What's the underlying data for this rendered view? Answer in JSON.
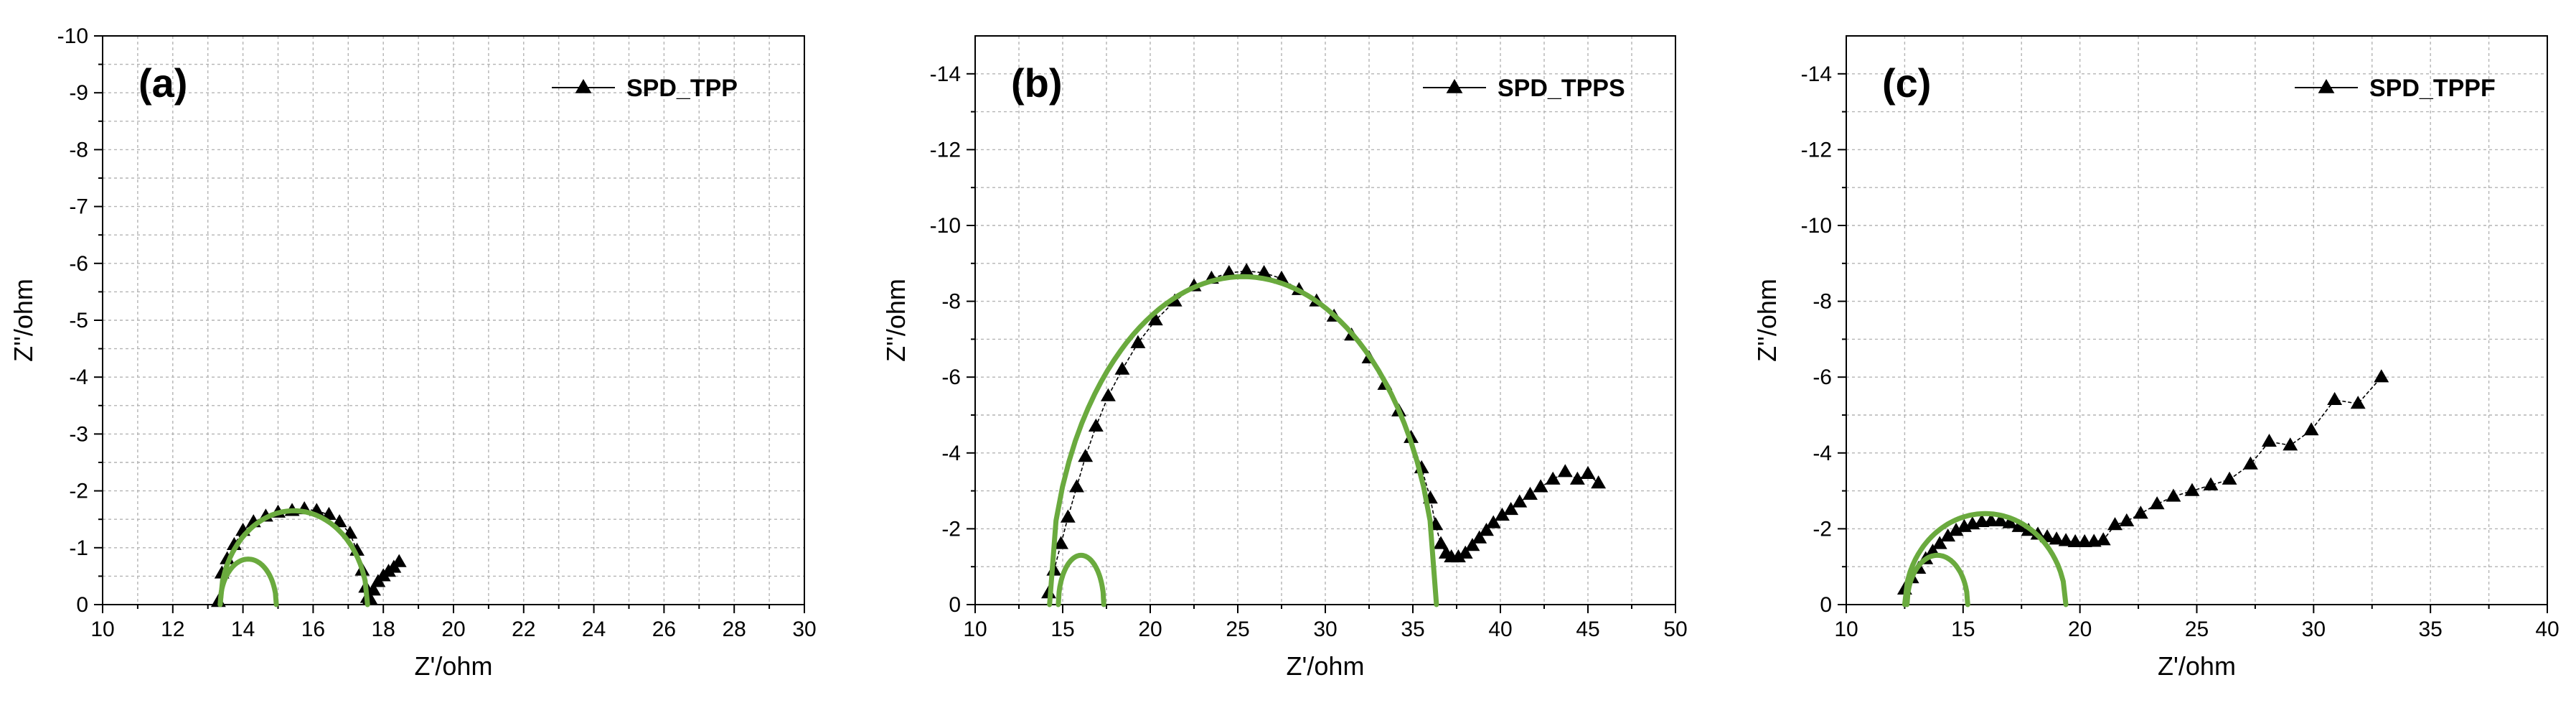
{
  "colors": {
    "data": "#000000",
    "fit": "#6aaa3e",
    "grid": "#b4b4b4",
    "axis": "#000000"
  },
  "chart_data": [
    {
      "type": "scatter",
      "panel_label": "(a)",
      "xlabel": "Z'/ohm",
      "ylabel": "Z''/ohm",
      "xlim": [
        10,
        30
      ],
      "ylim": [
        0,
        -10
      ],
      "xticks": [
        10,
        12,
        14,
        16,
        18,
        20,
        22,
        24,
        26,
        28,
        30
      ],
      "yticks": [
        0,
        -1,
        -2,
        -3,
        -4,
        -5,
        -6,
        -7,
        -8,
        -9,
        -10
      ],
      "x_tick_labels": [
        "10",
        "12",
        "14",
        "16",
        "18",
        "20",
        "22",
        "24",
        "26",
        "28",
        "30"
      ],
      "y_tick_labels": [
        "0",
        "-1",
        "-2",
        "-3",
        "-4",
        "-5",
        "-6",
        "-7",
        "-8",
        "-9",
        "-10"
      ],
      "legend": "top-right",
      "grid": true,
      "series": [
        {
          "name": "SPD_TPP",
          "style": "line+triangle",
          "x": [
            13.3,
            13.4,
            13.55,
            13.75,
            14.0,
            14.3,
            14.65,
            15.0,
            15.4,
            15.75,
            16.1,
            16.45,
            16.75,
            17.05,
            17.25,
            17.4,
            17.5,
            17.55,
            17.62,
            17.72,
            17.85,
            18.0,
            18.15,
            18.3,
            18.45
          ],
          "y": [
            -0.05,
            -0.55,
            -0.8,
            -1.05,
            -1.3,
            -1.45,
            -1.55,
            -1.62,
            -1.65,
            -1.68,
            -1.65,
            -1.58,
            -1.45,
            -1.25,
            -0.95,
            -0.6,
            -0.3,
            -0.12,
            -0.1,
            -0.25,
            -0.4,
            -0.5,
            -0.58,
            -0.65,
            -0.75
          ]
        },
        {
          "name": "fit-large-arc",
          "style": "fit",
          "center": 15.45,
          "radius": 2.1,
          "height": 1.65,
          "from": 13.35,
          "to": 17.55
        },
        {
          "name": "fit-small-arc",
          "style": "fit",
          "center": 14.15,
          "radius": 0.8,
          "height": 0.8,
          "from": 13.35,
          "to": 14.95
        }
      ]
    },
    {
      "type": "scatter",
      "panel_label": "(b)",
      "xlabel": "Z'/ohm",
      "ylabel": "Z''/ohm",
      "xlim": [
        10,
        50
      ],
      "ylim": [
        0,
        -15
      ],
      "xticks": [
        10,
        15,
        20,
        25,
        30,
        35,
        40,
        45,
        50
      ],
      "yticks": [
        0,
        -2,
        -4,
        -6,
        -8,
        -10,
        -12,
        -14
      ],
      "x_tick_labels": [
        "10",
        "15",
        "20",
        "25",
        "30",
        "35",
        "40",
        "45",
        "50"
      ],
      "y_tick_labels": [
        "0",
        "-2",
        "-4",
        "-6",
        "-8",
        "-10",
        "-12",
        "-14"
      ],
      "legend": "top-right",
      "grid": true,
      "series": [
        {
          "name": "SPD_TPPS",
          "style": "line+triangle",
          "x": [
            14.2,
            14.5,
            14.9,
            15.3,
            15.8,
            16.3,
            16.9,
            17.6,
            18.4,
            19.3,
            20.3,
            21.4,
            22.5,
            23.5,
            24.5,
            25.5,
            26.5,
            27.5,
            28.5,
            29.5,
            30.5,
            31.5,
            32.5,
            33.4,
            34.2,
            34.9,
            35.5,
            36.0,
            36.3,
            36.6,
            36.9,
            37.2,
            37.6,
            38.0,
            38.4,
            38.8,
            39.2,
            39.6,
            40.1,
            40.6,
            41.1,
            41.7,
            42.3,
            43.0,
            43.7,
            44.4,
            45.0,
            45.6
          ],
          "y": [
            -0.3,
            -0.9,
            -1.6,
            -2.3,
            -3.1,
            -3.9,
            -4.7,
            -5.5,
            -6.2,
            -6.9,
            -7.5,
            -8.0,
            -8.4,
            -8.6,
            -8.75,
            -8.8,
            -8.75,
            -8.6,
            -8.3,
            -8.0,
            -7.6,
            -7.1,
            -6.5,
            -5.8,
            -5.1,
            -4.4,
            -3.6,
            -2.8,
            -2.1,
            -1.6,
            -1.35,
            -1.25,
            -1.25,
            -1.35,
            -1.55,
            -1.75,
            -1.95,
            -2.15,
            -2.35,
            -2.5,
            -2.7,
            -2.9,
            -3.1,
            -3.3,
            -3.5,
            -3.3,
            -3.45,
            -3.2
          ]
        },
        {
          "name": "fit-large-arc",
          "style": "fit",
          "center": 25.3,
          "radius": 11.05,
          "height": 8.65,
          "from": 14.25,
          "to": 36.35
        },
        {
          "name": "fit-small-arc",
          "style": "fit",
          "center": 16.05,
          "radius": 1.3,
          "height": 1.3,
          "from": 14.75,
          "to": 17.35
        }
      ]
    },
    {
      "type": "scatter",
      "panel_label": "(c)",
      "xlabel": "Z'/ohm",
      "ylabel": "Z''/ohm",
      "xlim": [
        10,
        40
      ],
      "ylim": [
        0,
        -15
      ],
      "xticks": [
        10,
        15,
        20,
        25,
        30,
        35,
        40
      ],
      "yticks": [
        0,
        -2,
        -4,
        -6,
        -8,
        -10,
        -12,
        -14
      ],
      "x_tick_labels": [
        "10",
        "15",
        "20",
        "25",
        "30",
        "35",
        "40"
      ],
      "y_tick_labels": [
        "0",
        "-2",
        "-4",
        "-6",
        "-8",
        "-10",
        "-12",
        "-14"
      ],
      "legend": "top-right",
      "grid": true,
      "series": [
        {
          "name": "SPD_TPPF",
          "style": "line+triangle",
          "x": [
            12.5,
            12.8,
            13.1,
            13.4,
            13.7,
            14.0,
            14.35,
            14.7,
            15.05,
            15.4,
            15.8,
            16.2,
            16.6,
            17.0,
            17.4,
            17.8,
            18.2,
            18.6,
            19.0,
            19.4,
            19.8,
            20.2,
            20.6,
            21.0,
            21.5,
            22.0,
            22.6,
            23.3,
            24.0,
            24.8,
            25.6,
            26.4,
            27.3,
            28.1,
            29.0,
            29.9,
            30.9,
            31.9,
            32.9
          ],
          "y": [
            -0.4,
            -0.7,
            -0.95,
            -1.2,
            -1.4,
            -1.6,
            -1.8,
            -1.95,
            -2.05,
            -2.12,
            -2.18,
            -2.2,
            -2.2,
            -2.15,
            -2.05,
            -1.95,
            -1.85,
            -1.78,
            -1.72,
            -1.68,
            -1.65,
            -1.65,
            -1.66,
            -1.7,
            -2.1,
            -2.2,
            -2.4,
            -2.65,
            -2.85,
            -3.0,
            -3.15,
            -3.3,
            -3.7,
            -4.3,
            -4.2,
            -4.6,
            -5.4,
            -5.3,
            -6.0
          ]
        },
        {
          "name": "fit-large-arc",
          "style": "fit",
          "center": 15.95,
          "radius": 3.45,
          "height": 2.4,
          "from": 12.5,
          "to": 19.4
        },
        {
          "name": "fit-small-arc",
          "style": "fit",
          "center": 13.9,
          "radius": 1.3,
          "height": 1.3,
          "from": 12.6,
          "to": 15.2
        }
      ]
    }
  ]
}
